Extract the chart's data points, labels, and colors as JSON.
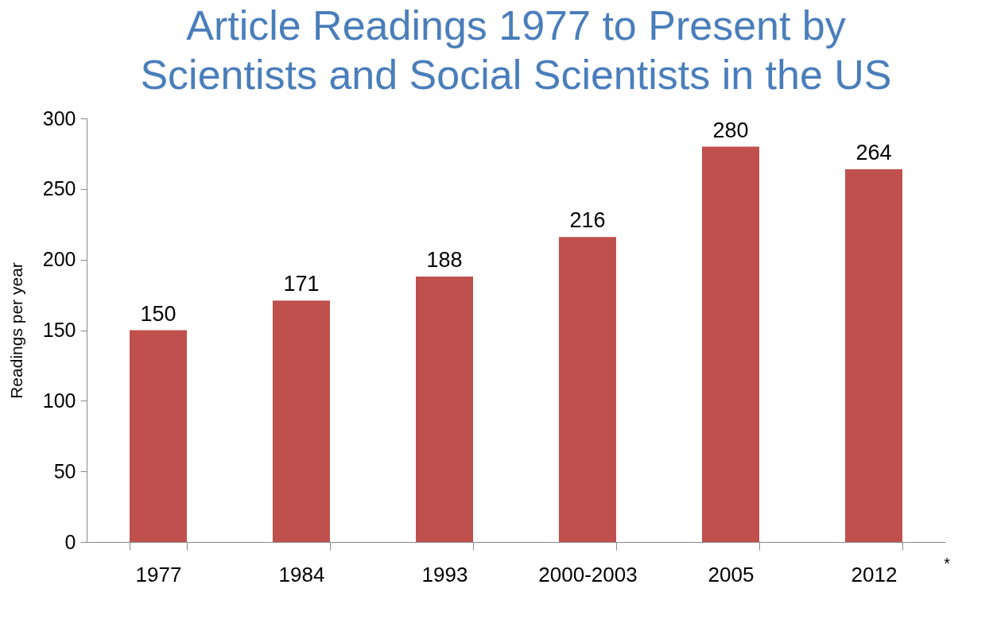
{
  "chart_data": {
    "type": "bar",
    "title": [
      "Article Readings 1977 to Present by",
      "Scientists and Social Scientists in the US"
    ],
    "ylabel": "Readings per year",
    "categories": [
      "1977",
      "1984",
      "1993",
      "2000-2003",
      "2005",
      "2012"
    ],
    "values": [
      150,
      171,
      188,
      216,
      280,
      264
    ],
    "color": "#c0504d",
    "ylim": [
      0,
      300
    ],
    "yticks": [
      0,
      50,
      100,
      150,
      200,
      250,
      300
    ],
    "grid": false,
    "data_labels": true,
    "annotations": [
      "*"
    ]
  }
}
